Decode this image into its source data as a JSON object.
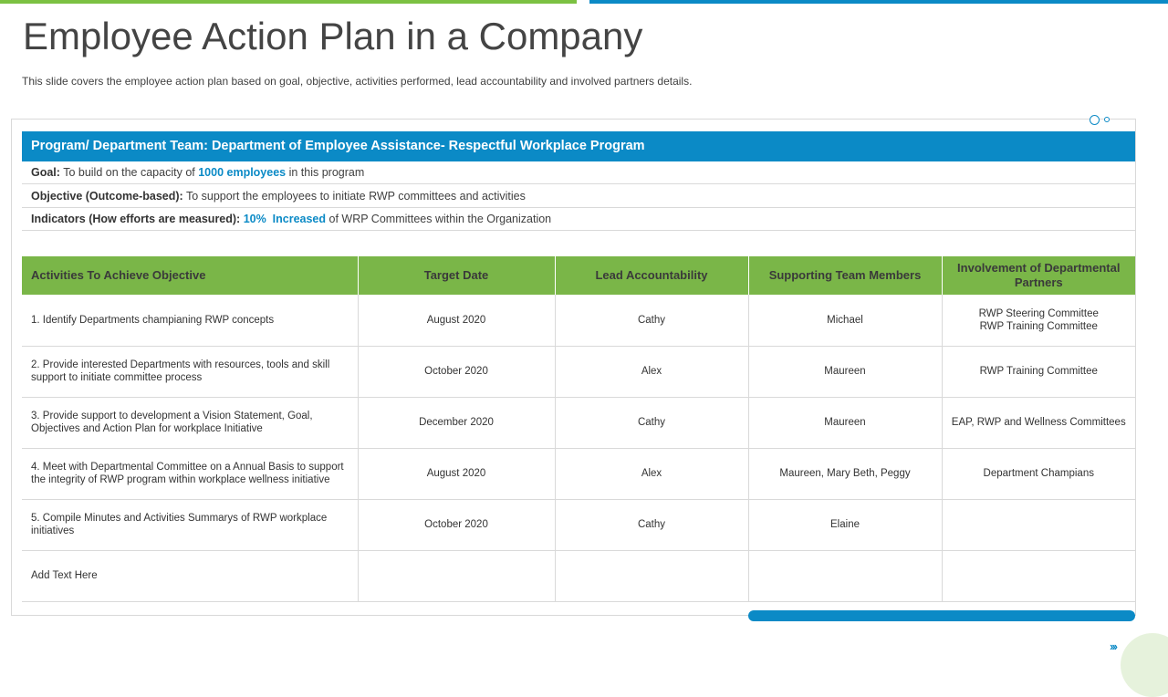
{
  "slide": {
    "title": "Employee Action Plan in a Company",
    "subtitle": "This slide covers the employee action plan based on goal, objective, activities performed,  lead accountability and involved  partners details."
  },
  "program": {
    "header": "Program/ Department Team: Department of Employee Assistance- Respectful Workplace Program",
    "goal": {
      "label": "Goal:",
      "pre": " To build on the capacity of ",
      "highlight": "1000 employees",
      "post": " in this program"
    },
    "objective": {
      "label": "Objective (Outcome-based):",
      "text": " To support the employees to initiate RWP committees and activities"
    },
    "indicators": {
      "label": "Indicators (How efforts  are measured):",
      "highlight": " 10%  Increased",
      "post": " of WRP Committees within the Organization"
    }
  },
  "table": {
    "headers": [
      "Activities  To Achieve Objective",
      "Target Date",
      "Lead Accountability",
      "Supporting Team Members",
      "Involvement of Departmental Partners"
    ],
    "rows": [
      [
        "1. Identify Departments champianing RWP concepts",
        "August 2020",
        "Cathy",
        "Michael",
        "RWP Steering Committee\nRWP Training Committee"
      ],
      [
        "2. Provide interested Departments with resources, tools and skill support to initiate committee process",
        "October 2020",
        "Alex",
        "Maureen",
        "RWP Training Committee"
      ],
      [
        "3. Provide support to development a Vision Statement, Goal, Objectives and Action Plan for workplace Initiative",
        "December 2020",
        "Cathy",
        "Maureen",
        "EAP,  RWP and Wellness Committees"
      ],
      [
        "4. Meet with Departmental Committee on a Annual Basis to support the integrity of RWP program within workplace wellness initiative",
        "August 2020",
        "Alex",
        "Maureen, Mary  Beth, Peggy",
        "Department Champians"
      ],
      [
        "5. Compile Minutes and Activities Summarys of RWP workplace initiatives",
        "October 2020",
        "Cathy",
        "Elaine",
        ""
      ],
      [
        "Add Text Here",
        "",
        "",
        "",
        ""
      ]
    ]
  },
  "decor": {
    "next_icon": "triple-chevron-right-icon",
    "next_glyph": "›››",
    "colors": {
      "blue": "#0b8ac6",
      "green": "#7ab648"
    }
  }
}
